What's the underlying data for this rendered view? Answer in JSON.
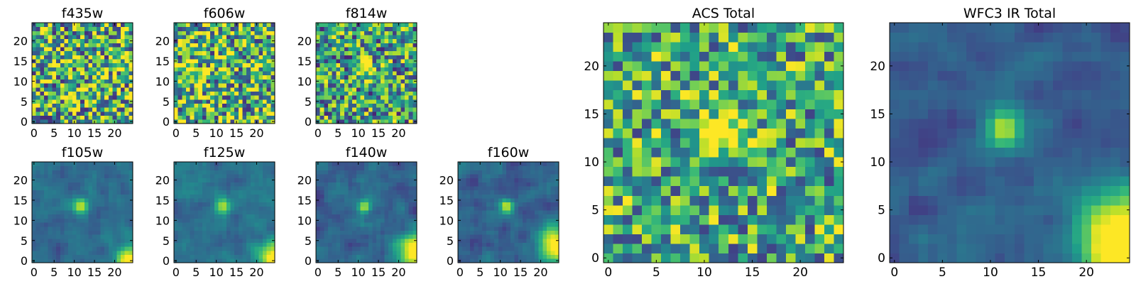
{
  "figure": {
    "colormap": [
      "#440154",
      "#482878",
      "#3e4989",
      "#31688e",
      "#26828e",
      "#1f9e89",
      "#35b779",
      "#6ece58",
      "#b5de2b",
      "#fde725"
    ],
    "frame_color": "#000000"
  },
  "chart_data": [
    {
      "type": "heatmap",
      "title": "f435w",
      "xlabel": "",
      "ylabel": "",
      "xlim": [
        0,
        24
      ],
      "ylim": [
        0,
        24
      ],
      "xticks": [
        "0",
        "5",
        "10",
        "15",
        "20"
      ],
      "yticks": [
        "0",
        "5",
        "10",
        "15",
        "20"
      ],
      "grid": false,
      "pattern": "noise",
      "noise_level": 0.62,
      "noise_spread": 0.5,
      "source": null,
      "corner": null
    },
    {
      "type": "heatmap",
      "title": "f606w",
      "xlabel": "",
      "ylabel": "",
      "xlim": [
        0,
        24
      ],
      "ylim": [
        0,
        24
      ],
      "xticks": [
        "0",
        "5",
        "10",
        "15",
        "20"
      ],
      "yticks": [
        "0",
        "5",
        "10",
        "15",
        "20"
      ],
      "grid": false,
      "pattern": "noise",
      "noise_level": 0.65,
      "noise_spread": 0.5,
      "source": null,
      "corner": null
    },
    {
      "type": "heatmap",
      "title": "f814w",
      "xlabel": "",
      "ylabel": "",
      "xlim": [
        0,
        24
      ],
      "ylim": [
        0,
        24
      ],
      "xticks": [
        "0",
        "5",
        "10",
        "15",
        "20"
      ],
      "yticks": [
        "0",
        "5",
        "10",
        "15",
        "20"
      ],
      "grid": false,
      "pattern": "noise",
      "noise_level": 0.55,
      "noise_spread": 0.45,
      "source": {
        "x": 11.5,
        "y": 13.5,
        "sigma": 1.2,
        "peak": 0.9
      },
      "corner": null
    },
    {
      "type": "heatmap",
      "title": "f105w",
      "xlabel": "",
      "ylabel": "",
      "xlim": [
        0,
        24
      ],
      "ylim": [
        0,
        24
      ],
      "xticks": [
        "0",
        "5",
        "10",
        "15",
        "20"
      ],
      "yticks": [
        "0",
        "5",
        "10",
        "15",
        "20"
      ],
      "grid": false,
      "pattern": "smooth",
      "noise_level": 0.35,
      "noise_spread": 0.2,
      "source": {
        "x": 11.5,
        "y": 13.5,
        "sigma": 1.4,
        "peak": 0.6
      },
      "corner": {
        "x": 24,
        "y": 0,
        "sigma": 2.5,
        "peak": 0.8
      }
    },
    {
      "type": "heatmap",
      "title": "f125w",
      "xlabel": "",
      "ylabel": "",
      "xlim": [
        0,
        24
      ],
      "ylim": [
        0,
        24
      ],
      "xticks": [
        "0",
        "5",
        "10",
        "15",
        "20"
      ],
      "yticks": [
        "0",
        "5",
        "10",
        "15",
        "20"
      ],
      "grid": false,
      "pattern": "smooth",
      "noise_level": 0.38,
      "noise_spread": 0.2,
      "source": {
        "x": 11.5,
        "y": 13.5,
        "sigma": 1.5,
        "peak": 0.55
      },
      "corner": {
        "x": 24,
        "y": 1,
        "sigma": 2.5,
        "peak": 0.7
      }
    },
    {
      "type": "heatmap",
      "title": "f140w",
      "xlabel": "",
      "ylabel": "",
      "xlim": [
        0,
        24
      ],
      "ylim": [
        0,
        24
      ],
      "xticks": [
        "0",
        "5",
        "10",
        "15",
        "20"
      ],
      "yticks": [
        "0",
        "5",
        "10",
        "15",
        "20"
      ],
      "grid": false,
      "pattern": "smooth",
      "noise_level": 0.32,
      "noise_spread": 0.22,
      "source": {
        "x": 11.5,
        "y": 13.5,
        "sigma": 1.2,
        "peak": 0.6
      },
      "corner": {
        "x": 24,
        "y": 2,
        "sigma": 3.0,
        "peak": 0.8
      }
    },
    {
      "type": "heatmap",
      "title": "f160w",
      "xlabel": "",
      "ylabel": "",
      "xlim": [
        0,
        24
      ],
      "ylim": [
        0,
        24
      ],
      "xticks": [
        "0",
        "5",
        "10",
        "15",
        "20"
      ],
      "yticks": [
        "0",
        "5",
        "10",
        "15",
        "20"
      ],
      "grid": false,
      "pattern": "smooth",
      "noise_level": 0.3,
      "noise_spread": 0.22,
      "source": {
        "x": 11.5,
        "y": 13.5,
        "sigma": 1.2,
        "peak": 0.65
      },
      "corner": {
        "x": 24,
        "y": 4,
        "sigma": 3.2,
        "peak": 0.85
      }
    },
    {
      "type": "heatmap",
      "title": "ACS Total",
      "xlabel": "",
      "ylabel": "",
      "xlim": [
        0,
        24
      ],
      "ylim": [
        0,
        24
      ],
      "xticks": [
        "0",
        "5",
        "10",
        "15",
        "20"
      ],
      "yticks": [
        "0",
        "5",
        "10",
        "15",
        "20"
      ],
      "grid": false,
      "pattern": "noise",
      "noise_level": 0.6,
      "noise_spread": 0.4,
      "source": {
        "x": 11.5,
        "y": 13,
        "sigma": 1.3,
        "peak": 0.7
      },
      "corner": null
    },
    {
      "type": "heatmap",
      "title": "WFC3 IR Total",
      "xlabel": "",
      "ylabel": "",
      "xlim": [
        0,
        24
      ],
      "ylim": [
        0,
        24
      ],
      "xticks": [
        "0",
        "5",
        "10",
        "15",
        "20"
      ],
      "yticks": [
        "0",
        "5",
        "10",
        "15",
        "20"
      ],
      "grid": false,
      "pattern": "smooth",
      "noise_level": 0.3,
      "noise_spread": 0.2,
      "source": {
        "x": 11.5,
        "y": 13.5,
        "sigma": 1.4,
        "peak": 0.6
      },
      "corner": {
        "x": 24,
        "y": 2,
        "sigma": 3.5,
        "peak": 0.9
      }
    }
  ]
}
